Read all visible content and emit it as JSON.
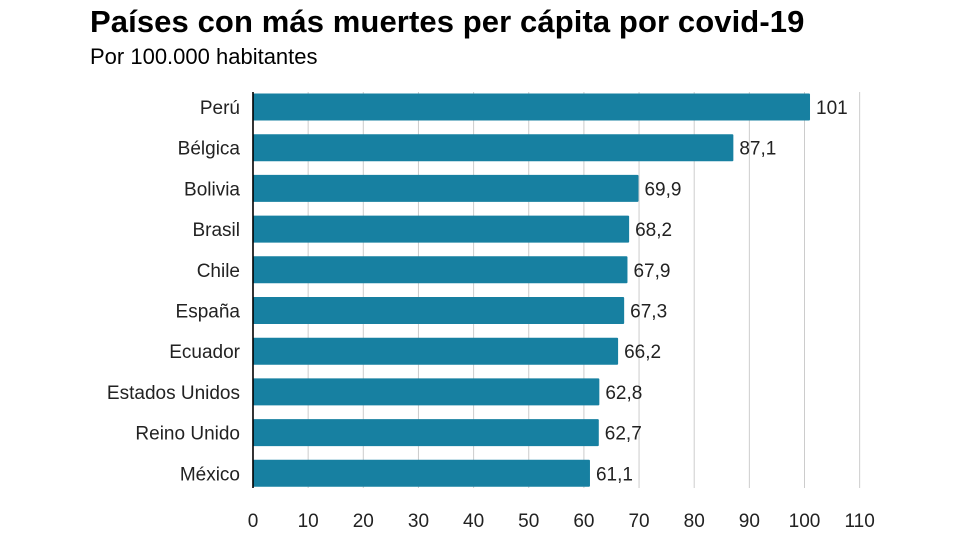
{
  "chart_data": {
    "type": "bar",
    "orientation": "horizontal",
    "title": "Países con más muertes per cápita por covid-19",
    "subtitle": "Por 100.000 habitantes",
    "categories": [
      "Perú",
      "Bélgica",
      "Bolivia",
      "Brasil",
      "Chile",
      "España",
      "Ecuador",
      "Estados Unidos",
      "Reino Unido",
      "México"
    ],
    "values": [
      101,
      87.1,
      69.9,
      68.2,
      67.9,
      67.3,
      66.2,
      62.8,
      62.7,
      61.1
    ],
    "value_labels": [
      "101",
      "87,1",
      "69,9",
      "68,2",
      "67,9",
      "67,3",
      "66,2",
      "62,8",
      "62,7",
      "61,1"
    ],
    "xlim": [
      0,
      110
    ],
    "xticks": [
      0,
      10,
      20,
      30,
      40,
      50,
      60,
      70,
      80,
      90,
      100,
      110
    ],
    "grid": true,
    "bar_color": "#1780a1"
  }
}
